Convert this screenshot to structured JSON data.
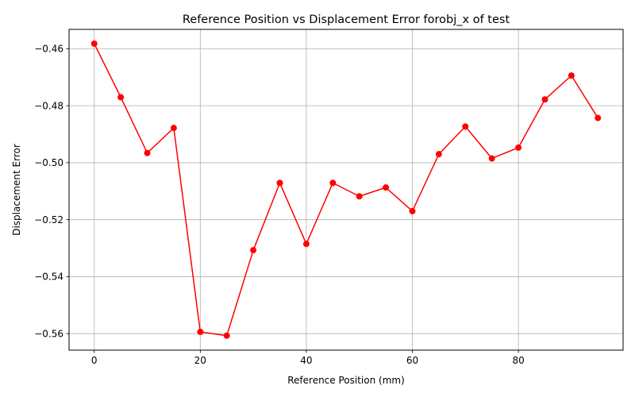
{
  "chart_data": {
    "type": "line",
    "title": "Reference Position vs Displacement Error forobj_x of test",
    "xlabel": "Reference Position (mm)",
    "ylabel": "Displacement Error",
    "xlim": [
      -4.75,
      99.75
    ],
    "ylim": [
      -0.5658,
      -0.4532
    ],
    "xticks": [
      0,
      20,
      40,
      60,
      80
    ],
    "xtick_labels": [
      "0",
      "20",
      "40",
      "60",
      "80"
    ],
    "yticks": [
      -0.46,
      -0.48,
      -0.5,
      -0.52,
      -0.54,
      -0.56
    ],
    "ytick_labels": [
      "−0.46",
      "−0.48",
      "−0.50",
      "−0.52",
      "−0.54",
      "−0.56"
    ],
    "grid": true,
    "color": "#ff0000",
    "series": [
      {
        "x": [
          0,
          5,
          10,
          15,
          20,
          25,
          30,
          35,
          40,
          45,
          50,
          55,
          60,
          65,
          70,
          75,
          80,
          85,
          90,
          95
        ],
        "values": [
          -0.4582,
          -0.477,
          -0.4966,
          -0.4878,
          -0.5594,
          -0.5607,
          -0.5307,
          -0.5071,
          -0.5285,
          -0.5071,
          -0.5118,
          -0.5087,
          -0.517,
          -0.497,
          -0.4873,
          -0.4985,
          -0.4947,
          -0.4778,
          -0.4694,
          -0.4843
        ]
      }
    ]
  }
}
